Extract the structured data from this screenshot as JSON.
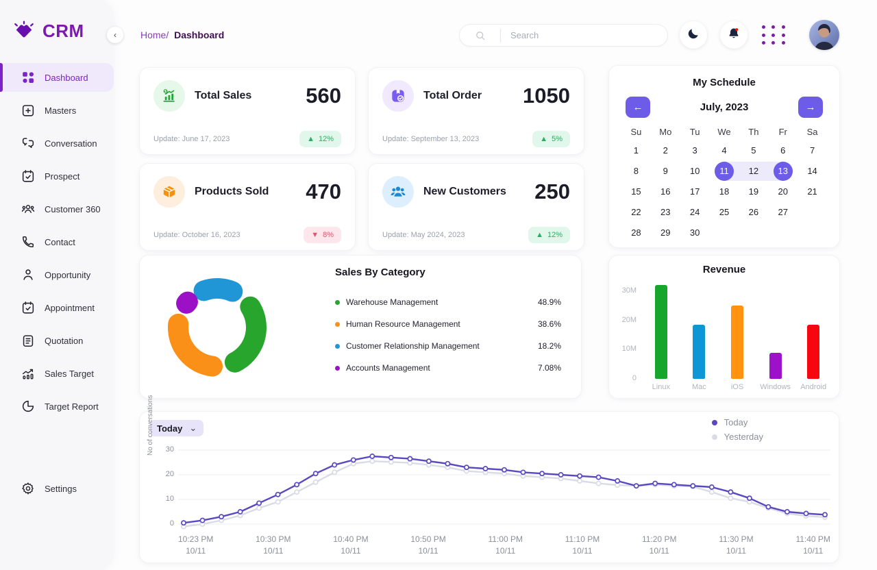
{
  "app": {
    "brand": "CRM"
  },
  "header": {
    "breadcrumb_home": "Home/",
    "breadcrumb_current": "Dashboard",
    "search_placeholder": "Search"
  },
  "sidebar": {
    "items": [
      {
        "label": "Dashboard",
        "icon": "dashboard",
        "active": true
      },
      {
        "label": "Masters",
        "icon": "masters"
      },
      {
        "label": "Conversation",
        "icon": "conversation"
      },
      {
        "label": "Prospect",
        "icon": "calendar-check"
      },
      {
        "label": "Customer 360",
        "icon": "customer-360"
      },
      {
        "label": "Contact",
        "icon": "phone"
      },
      {
        "label": "Opportunity",
        "icon": "person"
      },
      {
        "label": "Appointment",
        "icon": "calendar-check"
      },
      {
        "label": "Quotation",
        "icon": "quotation"
      },
      {
        "label": "Sales Target",
        "icon": "sales-target"
      },
      {
        "label": "Target Report",
        "icon": "target-report"
      },
      {
        "label": "Settings",
        "icon": "settings",
        "gap": true
      }
    ]
  },
  "cards": [
    {
      "title": "Total Sales",
      "value": "560",
      "update": "Update: June 17, 2023",
      "change": {
        "dir": "up",
        "label": "12%"
      }
    },
    {
      "title": "Total Order",
      "value": "1050",
      "update": "Update: September 13, 2023",
      "change": {
        "dir": "up",
        "label": "5%"
      }
    },
    {
      "title": "Products Sold",
      "value": "470",
      "update": "Update: October 16, 2023",
      "change": {
        "dir": "down",
        "label": "8%"
      }
    },
    {
      "title": "New Customers",
      "value": "250",
      "update": "Update: May 2024, 2023",
      "change": {
        "dir": "up",
        "label": "12%"
      }
    }
  ],
  "schedule": {
    "title": "My Schedule",
    "month": "July, 2023",
    "day_headers": [
      "Su",
      "Mo",
      "Tu",
      "We",
      "Th",
      "Fr",
      "Sa"
    ],
    "weeks": [
      [
        1,
        2,
        3,
        4,
        5,
        6,
        7
      ],
      [
        8,
        9,
        10,
        11,
        12,
        13,
        14
      ],
      [
        15,
        16,
        17,
        18,
        19,
        20,
        21
      ],
      [
        22,
        23,
        24,
        25,
        26,
        27,
        null
      ],
      [
        28,
        29,
        30,
        null,
        null,
        null,
        null
      ]
    ],
    "selected_start": 11,
    "selected_end": 13
  },
  "chart_data": [
    {
      "type": "pie",
      "title": "Sales By Category",
      "legend_position": "right",
      "items": [
        {
          "label": "Warehouse Management",
          "value": 48.9,
          "pct_label": "48.9%",
          "color": "#27a52c",
          "start_deg": 58,
          "sweep_deg": 95
        },
        {
          "label": "Human Resource Management",
          "value": 38.6,
          "pct_label": "38.6%",
          "color": "#fb9018",
          "start_deg": 187,
          "sweep_deg": 88
        },
        {
          "label": "Customer Relationship Management",
          "value": 18.2,
          "pct_label": "18.2%",
          "color": "#2196d6",
          "start_deg": 340,
          "sweep_deg": 43
        },
        {
          "label": "Accounts Management",
          "value": 7.08,
          "pct_label": "7.08%",
          "color": "#9c10c6",
          "start_deg": 308,
          "sweep_deg": 3
        }
      ]
    },
    {
      "type": "bar",
      "title": "Revenue",
      "categories": [
        "Linux",
        "Mac",
        "iOS",
        "Windows",
        "Android"
      ],
      "values": [
        32,
        18.5,
        25,
        9,
        18.5
      ],
      "value_unit": "M",
      "colors": [
        "#16a62b",
        "#0e96d5",
        "#ff930f",
        "#9c11c9",
        "#f6070f"
      ],
      "yticks": [
        {
          "v": 0,
          "label": "0"
        },
        {
          "v": 10,
          "label": "10M"
        },
        {
          "v": 20,
          "label": "20M"
        },
        {
          "v": 30,
          "label": "30M"
        }
      ],
      "ylim": [
        0,
        33
      ],
      "grid": false
    },
    {
      "type": "line",
      "filter_label": "Today",
      "ylabel": "No of conversations",
      "yticks": [
        0,
        10,
        20,
        30
      ],
      "ylim": [
        0,
        30
      ],
      "grid": true,
      "legend_position": "top-right",
      "x_labels": [
        {
          "time": "10:23 PM",
          "date": "10/11"
        },
        {
          "time": "10:30 PM",
          "date": "10/11"
        },
        {
          "time": "10:40 PM",
          "date": "10/11"
        },
        {
          "time": "10:50 PM",
          "date": "10/11"
        },
        {
          "time": "11:00 PM",
          "date": "10/11"
        },
        {
          "time": "11:10 PM",
          "date": "10/11"
        },
        {
          "time": "11:20 PM",
          "date": "10/11"
        },
        {
          "time": "11:30 PM",
          "date": "10/11"
        },
        {
          "time": "11:40 PM",
          "date": "10/11"
        }
      ],
      "series": [
        {
          "name": "Today",
          "color": "#5948c0",
          "values": [
            0.5,
            1.5,
            3,
            5,
            8.5,
            12,
            16,
            20.5,
            24,
            26,
            27.5,
            27,
            26.5,
            25.5,
            24.5,
            23,
            22.5,
            22,
            21,
            20.5,
            20,
            19.5,
            19,
            17.5,
            15.5,
            16.5,
            16,
            15.5,
            15,
            13,
            10.5,
            7,
            5,
            4.3,
            3.8
          ]
        },
        {
          "name": "Yesterday",
          "color": "#d9dce6",
          "values": [
            -1,
            0,
            1.5,
            3.5,
            6.5,
            9,
            13,
            17,
            21,
            24.5,
            25.5,
            25.2,
            24.8,
            24,
            23,
            21.5,
            21,
            20.5,
            19.5,
            19,
            18.5,
            17.5,
            16.5,
            15.8,
            15.5,
            16,
            15.5,
            15.2,
            13,
            10.5,
            9,
            6.5,
            4.3,
            3.3,
            2.8
          ]
        }
      ]
    }
  ]
}
